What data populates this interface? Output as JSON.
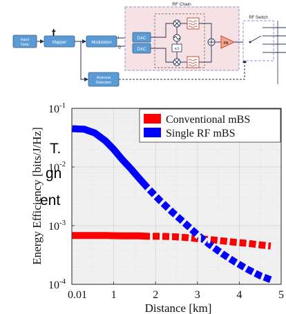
{
  "slide_text": {
    "line1": "t",
    "line2": "T.",
    "line3": "gn",
    "line4": "ent"
  },
  "diagram": {
    "input_data": [
      "Input",
      "Data"
    ],
    "mapper": "Mapper",
    "modulation": "Modulation",
    "i_label": "I",
    "q_label": "Q",
    "dac": "DAC",
    "rf_chain": "RF Chain",
    "phase_label": "π/2",
    "pa": "PA",
    "rf_switch": "RF Switch",
    "antenna_selection": [
      "Antenna",
      "Selection"
    ]
  },
  "chart_data": {
    "type": "scatter",
    "xlabel": "Distance [km]",
    "ylabel": "Energy Efficiency [bits/J/Hz]",
    "xlim": [
      0,
      5
    ],
    "ylim": [
      0.0001,
      0.1
    ],
    "y_scale": "log",
    "xticks": [
      0,
      1,
      2,
      3,
      4,
      5
    ],
    "xtick_labels": [
      "0.01",
      "1",
      "2",
      "3",
      "4",
      "5"
    ],
    "yticks": [
      0.1,
      0.01,
      0.001,
      0.0001
    ],
    "ytick_labels": [
      {
        "base": "10",
        "exp": "-1"
      },
      {
        "base": "10",
        "exp": "-2"
      },
      {
        "base": "10",
        "exp": "-3"
      },
      {
        "base": "10",
        "exp": "-4"
      }
    ],
    "grid": true,
    "legend_position": "top-right",
    "series": [
      {
        "name": "Conventional mBS",
        "color": "#ff0000",
        "x": [
          0.01,
          0.4,
          0.8,
          1.2,
          1.6,
          1.8,
          2.1,
          2.4,
          2.7,
          3.0,
          3.3,
          3.6,
          3.9,
          4.2,
          4.5,
          4.75
        ],
        "y": [
          0.00068,
          0.00068,
          0.00068,
          0.00067,
          0.00067,
          0.00066,
          0.00066,
          0.00065,
          0.00063,
          0.0006,
          0.00058,
          0.00055,
          0.00052,
          0.0005,
          0.00047,
          0.00045
        ]
      },
      {
        "name": "Single RF mBS",
        "color": "#0000ff",
        "x": [
          0.01,
          0.3,
          0.55,
          0.8,
          1.0,
          1.2,
          1.4,
          1.6,
          1.8,
          2.1,
          2.4,
          2.7,
          3.0,
          3.3,
          3.6,
          3.9,
          4.2,
          4.5,
          4.75
        ],
        "y": [
          0.045,
          0.044,
          0.038,
          0.028,
          0.02,
          0.0135,
          0.0095,
          0.0065,
          0.0045,
          0.0027,
          0.0017,
          0.0011,
          0.0007,
          0.00047,
          0.00033,
          0.00024,
          0.00018,
          0.00014,
          0.00012
        ]
      }
    ]
  },
  "colors": {
    "box_fill": "#5b9bd5",
    "rf_chain_fill": "#f6e2e4",
    "rf_chain_border": "#9b8fd0",
    "pa_fill": "#f4a58a",
    "plot_bg": "#f0f0f0"
  }
}
